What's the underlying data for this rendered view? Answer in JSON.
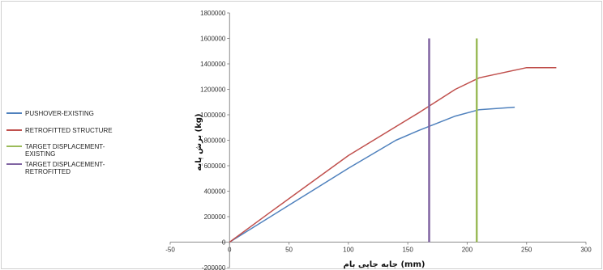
{
  "chart_data": {
    "type": "line",
    "xlabel": "جابه جایی بام (mm)",
    "ylabel": "برش پایه (kg)",
    "xlim": [
      -50,
      300
    ],
    "ylim": [
      -200000,
      1800000
    ],
    "x_ticks": [
      "-50",
      "0",
      "50",
      "100",
      "150",
      "200",
      "250",
      "300"
    ],
    "y_ticks": [
      "-200000",
      "0",
      "200000",
      "400000",
      "600000",
      "800000",
      "1000000",
      "1200000",
      "1400000",
      "1600000",
      "1800000"
    ],
    "x_tick_values": [
      -50,
      0,
      50,
      100,
      150,
      200,
      250,
      300
    ],
    "y_tick_values": [
      -200000,
      0,
      200000,
      400000,
      600000,
      800000,
      1000000,
      1200000,
      1400000,
      1600000,
      1800000
    ],
    "legend_position": "left",
    "grid": false,
    "series": [
      {
        "name": "PUSHOVER-EXISTING",
        "color": "#4f81bd",
        "x": [
          0,
          50,
          100,
          140,
          160,
          190,
          210,
          240
        ],
        "y": [
          0,
          290000,
          580000,
          800000,
          880000,
          990000,
          1040000,
          1060000
        ]
      },
      {
        "name": "RETROFITTED STRUCTURE",
        "color": "#c0504d",
        "x": [
          0,
          35,
          100,
          160,
          190,
          210,
          250,
          275
        ],
        "y": [
          0,
          240000,
          680000,
          1020000,
          1200000,
          1290000,
          1370000,
          1370000
        ]
      },
      {
        "name": "TARGET DISPLACEMENT-EXISTING",
        "legend_lines": [
          "TARGET DISPLACEMENT-",
          "EXISTING"
        ],
        "color": "#9bbb59",
        "x": [
          208,
          208
        ],
        "y": [
          0,
          1600000
        ]
      },
      {
        "name": "TARGET DISPLACEMENT-RETROFITTED",
        "legend_lines": [
          "TARGET DISPLACEMENT-",
          "RETROFITTED"
        ],
        "color": "#8064a2",
        "x": [
          168,
          168
        ],
        "y": [
          0,
          1600000
        ]
      }
    ]
  }
}
